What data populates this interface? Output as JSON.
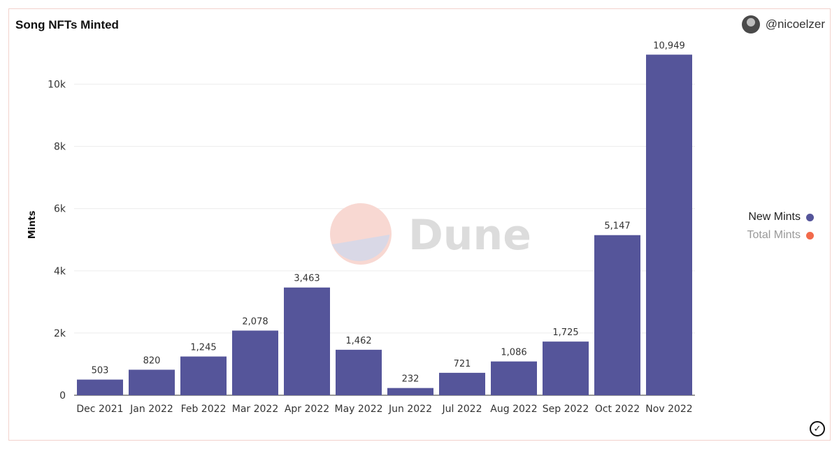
{
  "header": {
    "title": "Song NFTs Minted",
    "user": "@nicoelzer",
    "avatar_icon": "user-avatar"
  },
  "watermark": {
    "text": "Dune"
  },
  "legend": [
    {
      "label": "New Mints",
      "color": "#55559a"
    },
    {
      "label": "Total Mints",
      "color": "#f26a4b"
    }
  ],
  "chart_data": {
    "type": "bar",
    "title": "Song NFTs Minted",
    "ylabel": "Mints",
    "xlabel": "",
    "categories": [
      "Dec 2021",
      "Jan 2022",
      "Feb 2022",
      "Mar 2022",
      "Apr 2022",
      "May 2022",
      "Jun 2022",
      "Jul 2022",
      "Aug 2022",
      "Sep 2022",
      "Oct 2022",
      "Nov 2022"
    ],
    "series": [
      {
        "name": "New Mints",
        "color": "#55559a",
        "values": [
          503,
          820,
          1245,
          2078,
          3463,
          1462,
          232,
          721,
          1086,
          1725,
          5147,
          10949
        ]
      }
    ],
    "data_labels": [
      "503",
      "820",
      "1,245",
      "2,078",
      "3,463",
      "1,462",
      "232",
      "721",
      "1,086",
      "1,725",
      "5,147",
      "10,949"
    ],
    "yticks": [
      0,
      2000,
      4000,
      6000,
      8000,
      10000
    ],
    "ytick_labels": [
      "0",
      "2k",
      "4k",
      "6k",
      "8k",
      "10k"
    ],
    "ylim": [
      0,
      11000
    ],
    "grid": true,
    "legend_position": "right"
  }
}
